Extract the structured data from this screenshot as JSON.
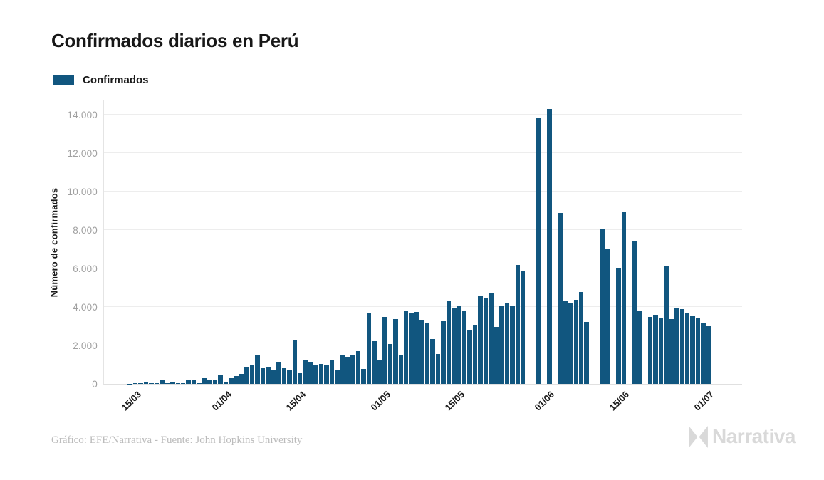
{
  "title": "Confirmados diarios en Perú",
  "legend": {
    "label": "Confirmados",
    "swatch_color": "#11567F"
  },
  "y_axis": {
    "title": "Número de confirmados",
    "tick_labels": [
      "0",
      "2.000",
      "4.000",
      "6.000",
      "8.000",
      "10.000",
      "12.000",
      "14.000"
    ],
    "tick_values": [
      0,
      2000,
      4000,
      6000,
      8000,
      10000,
      12000,
      14000
    ]
  },
  "x_axis": {
    "ticks": [
      {
        "label": "15/03",
        "index": 2
      },
      {
        "label": "01/04",
        "index": 19
      },
      {
        "label": "15/04",
        "index": 33
      },
      {
        "label": "01/05",
        "index": 49
      },
      {
        "label": "15/05",
        "index": 63
      },
      {
        "label": "01/06",
        "index": 80
      },
      {
        "label": "15/06",
        "index": 94
      },
      {
        "label": "01/07",
        "index": 110
      }
    ]
  },
  "footer": {
    "credit": "Gráfico: EFE/Narrativa - Fuente: John Hopkins University"
  },
  "brand": {
    "name": "Narrativa"
  },
  "colors": {
    "bar": "#11567F",
    "grid": "#ededed",
    "axis": "#e0e0e0",
    "y_tick_text": "#a0a0a0",
    "x_tick_text": "#1a1a1a",
    "title_text": "#171717",
    "footer_text": "#bcbcbc",
    "brand_text": "#d9d9d9"
  },
  "chart_data": {
    "type": "bar",
    "title": "Confirmados diarios en Perú",
    "series_name": "Confirmados",
    "xlabel": "",
    "ylabel": "Número de confirmados",
    "ylim": [
      0,
      14000
    ],
    "grid": true,
    "legend_position": "top-left",
    "x": [
      "13/03",
      "14/03",
      "15/03",
      "16/03",
      "17/03",
      "18/03",
      "19/03",
      "20/03",
      "21/03",
      "22/03",
      "23/03",
      "24/03",
      "25/03",
      "26/03",
      "27/03",
      "28/03",
      "29/03",
      "30/03",
      "31/03",
      "01/04",
      "02/04",
      "03/04",
      "04/04",
      "05/04",
      "06/04",
      "07/04",
      "08/04",
      "09/04",
      "10/04",
      "11/04",
      "12/04",
      "13/04",
      "14/04",
      "15/04",
      "16/04",
      "17/04",
      "18/04",
      "19/04",
      "20/04",
      "21/04",
      "22/04",
      "23/04",
      "24/04",
      "25/04",
      "26/04",
      "27/04",
      "28/04",
      "29/04",
      "30/04",
      "01/05",
      "02/05",
      "03/05",
      "04/05",
      "05/05",
      "06/05",
      "07/05",
      "08/05",
      "09/05",
      "10/05",
      "11/05",
      "12/05",
      "13/05",
      "14/05",
      "15/05",
      "16/05",
      "17/05",
      "18/05",
      "19/05",
      "20/05",
      "21/05",
      "22/05",
      "23/05",
      "24/05",
      "25/05",
      "26/05",
      "27/05",
      "28/05",
      "29/05",
      "30/05",
      "31/05",
      "01/06",
      "02/06",
      "03/06",
      "04/06",
      "05/06",
      "06/06",
      "07/06",
      "08/06",
      "09/06",
      "10/06",
      "11/06",
      "12/06",
      "13/06",
      "14/06",
      "15/06",
      "16/06",
      "17/06",
      "18/06",
      "19/06",
      "20/06",
      "21/06",
      "22/06",
      "23/06",
      "24/06",
      "25/06",
      "26/06",
      "27/06",
      "28/06",
      "29/06",
      "30/06",
      "01/07"
    ],
    "values": [
      0,
      15,
      30,
      40,
      75,
      55,
      40,
      175,
      30,
      120,
      40,
      40,
      170,
      190,
      50,
      290,
      220,
      230,
      470,
      120,
      280,
      410,
      530,
      850,
      1000,
      1520,
      800,
      880,
      740,
      1100,
      820,
      740,
      2320,
      555,
      1210,
      1150,
      990,
      1050,
      960,
      1210,
      740,
      1540,
      1400,
      1480,
      1700,
      780,
      3700,
      2220,
      1210,
      3500,
      2075,
      3380,
      1480,
      3810,
      3700,
      3735,
      3330,
      3200,
      2330,
      1555,
      3270,
      4300,
      3990,
      4070,
      3770,
      2800,
      3100,
      4550,
      4460,
      4770,
      2975,
      4090,
      4210,
      4100,
      6195,
      5885,
      0,
      0,
      13880,
      0,
      14340,
      0,
      8920,
      4300,
      4250,
      4400,
      4800,
      3220,
      0,
      0,
      8100,
      7000,
      0,
      6000,
      8960,
      0,
      7440,
      3770,
      0,
      3490,
      3580,
      3450,
      6120,
      3370,
      3950,
      3900,
      3730,
      3520,
      3400,
      3150,
      2990
    ]
  }
}
